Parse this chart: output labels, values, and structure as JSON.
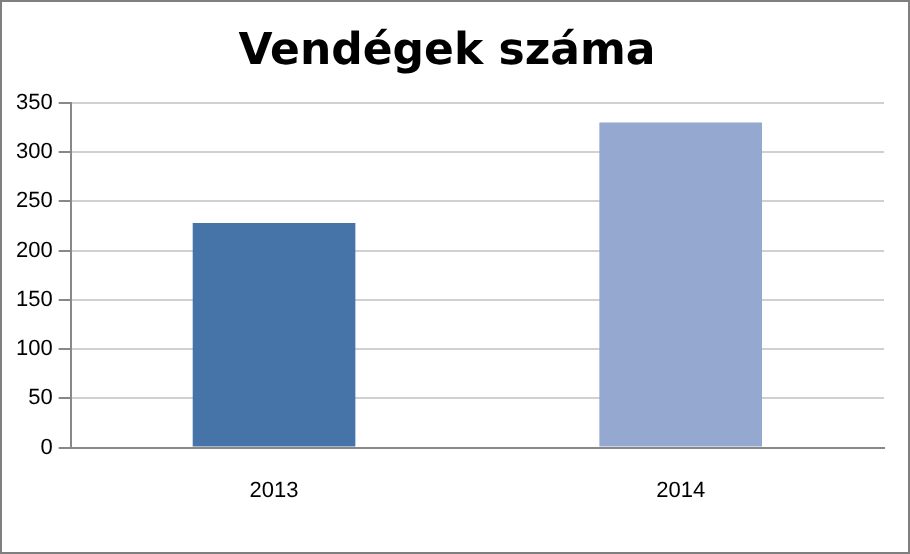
{
  "chart_data": {
    "type": "bar",
    "title": "Vendégek száma",
    "categories": [
      "2013",
      "2014"
    ],
    "values": [
      228,
      330
    ],
    "colors": [
      "#4673a8",
      "#95a9d0"
    ],
    "ylim": [
      0,
      350
    ],
    "yticks": [
      0,
      50,
      100,
      150,
      200,
      250,
      300,
      350
    ],
    "grid": "y",
    "legend": false
  }
}
